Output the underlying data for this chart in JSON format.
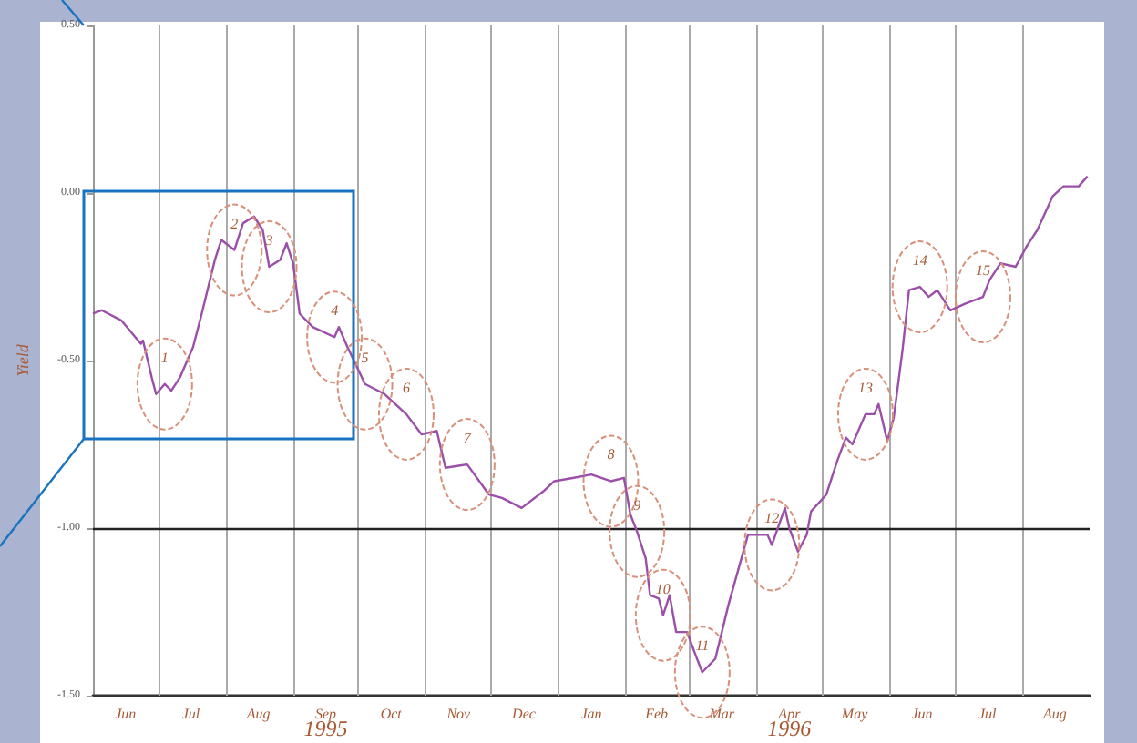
{
  "chart_data": {
    "type": "line",
    "ylabel": "Yield",
    "x": [
      "1995-06-01",
      "1995-06-05",
      "1995-06-14",
      "1995-06-23",
      "1995-06-24",
      "1995-06-28",
      "1995-06-30",
      "1995-07-04",
      "1995-07-07",
      "1995-07-11",
      "1995-07-17",
      "1995-07-21",
      "1995-07-27",
      "1995-07-30",
      "1995-08-05",
      "1995-08-09",
      "1995-08-14",
      "1995-08-18",
      "1995-08-21",
      "1995-08-26",
      "1995-08-29",
      "1995-09-01",
      "1995-09-04",
      "1995-09-10",
      "1995-09-20",
      "1995-09-22",
      "1995-09-26",
      "1995-10-04",
      "1995-10-13",
      "1995-10-23",
      "1995-10-30",
      "1995-11-06",
      "1995-11-10",
      "1995-11-20",
      "1995-11-30",
      "1995-12-06",
      "1995-12-15",
      "1995-12-25",
      "1995-12-30",
      "1996-01-08",
      "1996-01-16",
      "1996-01-25",
      "1996-01-31",
      "1996-02-03",
      "1996-02-06",
      "1996-02-10",
      "1996-02-12",
      "1996-02-16",
      "1996-02-18",
      "1996-02-21",
      "1996-02-24",
      "1996-02-29",
      "1996-03-04",
      "1996-03-07",
      "1996-03-13",
      "1996-03-19",
      "1996-03-25",
      "1996-03-28",
      "1996-04-06",
      "1996-04-08",
      "1996-04-14",
      "1996-04-16",
      "1996-04-20",
      "1996-04-24",
      "1996-04-26",
      "1996-05-03",
      "1996-05-08",
      "1996-05-12",
      "1996-05-15",
      "1996-05-21",
      "1996-05-25",
      "1996-05-27",
      "1996-05-31",
      "1996-06-03",
      "1996-06-07",
      "1996-06-10",
      "1996-06-15",
      "1996-06-19",
      "1996-06-23",
      "1996-06-29",
      "1996-07-06",
      "1996-07-14",
      "1996-07-17",
      "1996-07-22",
      "1996-07-29",
      "1996-08-03",
      "1996-08-08",
      "1996-08-15",
      "1996-08-20",
      "1996-08-27",
      "1996-08-31"
    ],
    "series": [
      {
        "color": "#9b4fa8",
        "values": [
          -0.36,
          -0.35,
          -0.38,
          -0.45,
          -0.44,
          -0.55,
          -0.6,
          -0.57,
          -0.59,
          -0.55,
          -0.46,
          -0.36,
          -0.2,
          -0.14,
          -0.17,
          -0.09,
          -0.07,
          -0.11,
          -0.22,
          -0.2,
          -0.15,
          -0.21,
          -0.36,
          -0.4,
          -0.43,
          -0.4,
          -0.46,
          -0.57,
          -0.6,
          -0.66,
          -0.72,
          -0.71,
          -0.82,
          -0.81,
          -0.9,
          -0.91,
          -0.94,
          -0.89,
          -0.86,
          -0.85,
          -0.84,
          -0.86,
          -0.85,
          -0.96,
          -1.01,
          -1.09,
          -1.2,
          -1.21,
          -1.26,
          -1.2,
          -1.31,
          -1.31,
          -1.38,
          -1.43,
          -1.39,
          -1.23,
          -1.09,
          -1.02,
          -1.02,
          -1.05,
          -0.94,
          -1.0,
          -1.07,
          -1.02,
          -0.95,
          -0.9,
          -0.8,
          -0.73,
          -0.75,
          -0.66,
          -0.66,
          -0.63,
          -0.74,
          -0.67,
          -0.47,
          -0.29,
          -0.28,
          -0.31,
          -0.29,
          -0.35,
          -0.33,
          -0.31,
          -0.26,
          -0.21,
          -0.22,
          -0.16,
          -0.11,
          -0.01,
          0.02,
          0.02,
          0.05
        ]
      }
    ],
    "xlim": [
      "1995-06-01",
      "1996-09-01"
    ],
    "xticks": [
      {
        "value": "1995-07-01",
        "label": null
      },
      {
        "value": "1995-08-01",
        "label": null
      },
      {
        "value": "1995-09-01",
        "label": null
      },
      {
        "value": "1995-10-01",
        "label": null
      },
      {
        "value": "1995-11-01",
        "label": null
      },
      {
        "value": "1995-12-01",
        "label": null
      },
      {
        "value": "1996-01-01",
        "label": null
      },
      {
        "value": "1996-02-01",
        "label": null
      },
      {
        "value": "1996-03-01",
        "label": null
      },
      {
        "value": "1996-04-01",
        "label": null
      },
      {
        "value": "1996-05-01",
        "label": null
      },
      {
        "value": "1996-06-01",
        "label": null
      },
      {
        "value": "1996-07-01",
        "label": null
      },
      {
        "value": "1996-08-01",
        "label": null
      },
      {
        "value": "1995-06-16",
        "label": "Jun"
      },
      {
        "value": "1995-07-16",
        "label": "Jul"
      },
      {
        "value": "1995-08-16",
        "label": "Aug"
      },
      {
        "value": "1995-09-16",
        "label": "Sep"
      },
      {
        "value": "1995-10-16",
        "label": "Oct"
      },
      {
        "value": "1995-11-16",
        "label": "Nov"
      },
      {
        "value": "1995-12-16",
        "label": "Dec"
      },
      {
        "value": "1996-01-16",
        "label": "Jan"
      },
      {
        "value": "1996-02-15",
        "label": "Feb"
      },
      {
        "value": "1996-03-16",
        "label": "Mar"
      },
      {
        "value": "1996-04-16",
        "label": "Apr"
      },
      {
        "value": "1996-05-16",
        "label": "May"
      },
      {
        "value": "1996-06-16",
        "label": "Jun"
      },
      {
        "value": "1996-07-16",
        "label": "Jul"
      },
      {
        "value": "1996-08-16",
        "label": "Aug"
      }
    ],
    "ylim": [
      -1.5,
      0.5
    ],
    "yticks": [
      {
        "value": 0.5,
        "label": "0.50"
      },
      {
        "value": 0,
        "label": "0.00"
      },
      {
        "value": -0.5,
        "label": "-0.50"
      },
      {
        "value": -1,
        "label": "-1.00"
      },
      {
        "value": -1.5,
        "label": "-1.50"
      }
    ],
    "grid": "x",
    "ref_lines": [
      {
        "axis": "y",
        "value": -1,
        "label": null,
        "color": "#222222"
      }
    ],
    "annotations": [
      "1995",
      "1996",
      {
        "text": "1",
        "x": "1995-07-04",
        "y": -0.57
      },
      {
        "text": "2",
        "x": "1995-08-05",
        "y": -0.17
      },
      {
        "text": "3",
        "x": "1995-08-21",
        "y": -0.22
      },
      {
        "text": "4",
        "x": "1995-09-20",
        "y": -0.43
      },
      {
        "text": "5",
        "x": "1995-10-04",
        "y": -0.57
      },
      {
        "text": "6",
        "x": "1995-10-23",
        "y": -0.66
      },
      {
        "text": "7",
        "x": "1995-11-20",
        "y": -0.81
      },
      {
        "text": "8",
        "x": "1996-01-25",
        "y": -0.86
      },
      {
        "text": "9",
        "x": "1996-02-06",
        "y": -1.01
      },
      {
        "text": "10",
        "x": "1996-02-18",
        "y": -1.26
      },
      {
        "text": "11",
        "x": "1996-03-07",
        "y": -1.43
      },
      {
        "text": "12",
        "x": "1996-04-08",
        "y": -1.05
      },
      {
        "text": "13",
        "x": "1996-05-21",
        "y": -0.66
      },
      {
        "text": "14",
        "x": "1996-06-15",
        "y": -0.28
      },
      {
        "text": "15",
        "x": "1996-07-14",
        "y": -0.31
      }
    ]
  }
}
